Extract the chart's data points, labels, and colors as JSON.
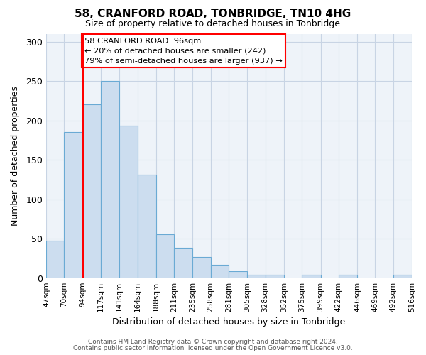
{
  "title": "58, CRANFORD ROAD, TONBRIDGE, TN10 4HG",
  "subtitle": "Size of property relative to detached houses in Tonbridge",
  "xlabel": "Distribution of detached houses by size in Tonbridge",
  "ylabel": "Number of detached properties",
  "bar_values": [
    47,
    185,
    220,
    250,
    193,
    131,
    56,
    38,
    27,
    17,
    9,
    4,
    4,
    0,
    4,
    0,
    4,
    0,
    0,
    4
  ],
  "bin_edges": [
    47,
    70,
    94,
    117,
    141,
    164,
    188,
    211,
    235,
    258,
    281,
    305,
    328,
    352,
    375,
    399,
    422,
    446,
    469,
    492,
    516
  ],
  "tick_labels": [
    "47sqm",
    "70sqm",
    "94sqm",
    "117sqm",
    "141sqm",
    "164sqm",
    "188sqm",
    "211sqm",
    "235sqm",
    "258sqm",
    "281sqm",
    "305sqm",
    "328sqm",
    "352sqm",
    "375sqm",
    "399sqm",
    "422sqm",
    "446sqm",
    "469sqm",
    "492sqm",
    "516sqm"
  ],
  "bar_color": "#ccddef",
  "bar_edge_color": "#6aaad4",
  "property_line_x": 94,
  "ylim": [
    0,
    310
  ],
  "yticks": [
    0,
    50,
    100,
    150,
    200,
    250,
    300
  ],
  "annotation_line1": "58 CRANFORD ROAD: 96sqm",
  "annotation_line2": "← 20% of detached houses are smaller (242)",
  "annotation_line3": "79% of semi-detached houses are larger (937) →",
  "footer1": "Contains HM Land Registry data © Crown copyright and database right 2024.",
  "footer2": "Contains public sector information licensed under the Open Government Licence v3.0.",
  "background_color": "#ffffff",
  "plot_bg_color": "#eef3f9",
  "grid_color": "#c8d4e4"
}
